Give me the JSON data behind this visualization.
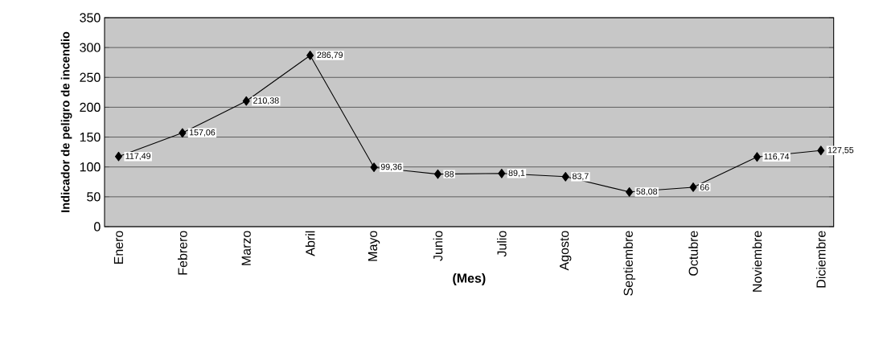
{
  "chart_data": {
    "type": "line",
    "xlabel": "(Mes)",
    "ylabel": "Indicador de peligro de incendio",
    "categories": [
      "Enero",
      "Febrero",
      "Marzo",
      "Abril",
      "Mayo",
      "Junio",
      "Julio",
      "Agosto",
      "Septiembre",
      "Octubre",
      "Noviembre",
      "Diciembre"
    ],
    "values": [
      117.49,
      157.06,
      210.38,
      286.79,
      99.36,
      88,
      89.1,
      83.7,
      58.08,
      66,
      116.74,
      127.55
    ],
    "value_labels": [
      "117,49",
      "157,06",
      "210,38",
      "286,79",
      "99,36",
      "88",
      "89,1",
      "83,7",
      "58,08",
      "66",
      "116,74",
      "127,55"
    ],
    "color": "#000000",
    "marker": "diamond",
    "line_style": "solid",
    "grid": "y",
    "ylim": [
      0,
      350
    ],
    "yticks": [
      0,
      50,
      100,
      150,
      200,
      250,
      300,
      350
    ]
  }
}
